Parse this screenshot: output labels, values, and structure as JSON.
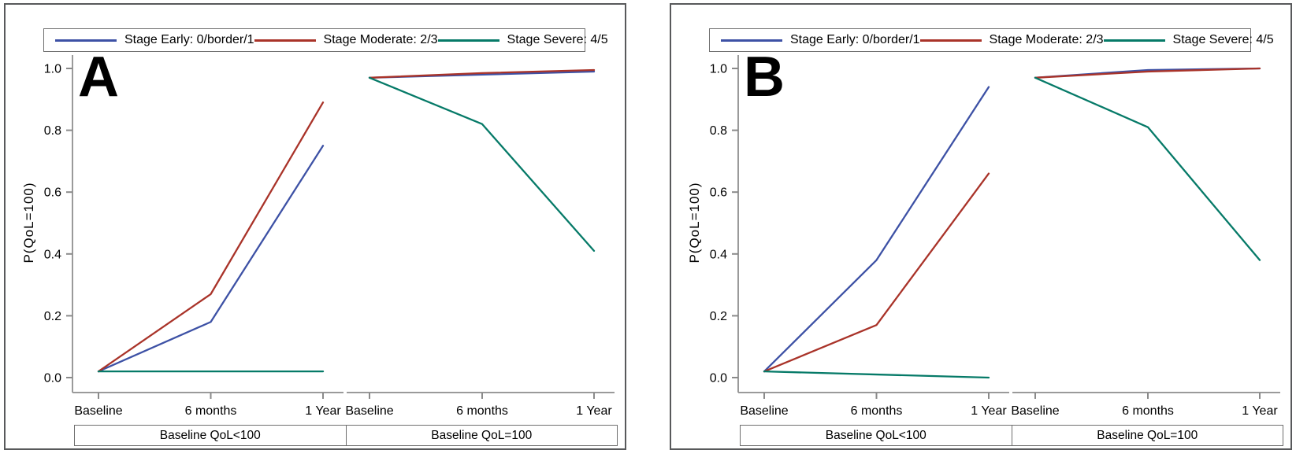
{
  "legend": {
    "entries": [
      {
        "label": "Stage Early: 0/border/1",
        "color": "#3d51a5"
      },
      {
        "label": "Stage Moderate: 2/3",
        "color": "#a93329"
      },
      {
        "label": "Stage Severe: 4/5",
        "color": "#067a68"
      }
    ]
  },
  "axes": {
    "ylabel": "P(QoL=100)",
    "ylim": [
      0,
      1
    ],
    "yticks": [
      1.0,
      0.8,
      0.6,
      0.4,
      0.2,
      0.0
    ],
    "ytick_labels": [
      "1.0",
      "0.8",
      "0.6",
      "0.4",
      "0.2",
      "0.0"
    ],
    "x_categories": [
      "Baseline",
      "6 months",
      "1 Year"
    ],
    "facet_labels": [
      "Baseline QoL<100",
      "Baseline QoL=100"
    ]
  },
  "chart_data": [
    {
      "type": "line",
      "panel": "A",
      "ylabel": "P(QoL=100)",
      "ylim": [
        0,
        1
      ],
      "grid": false,
      "legend_position": "top",
      "x": [
        "Baseline",
        "6 months",
        "1 Year"
      ],
      "facets": [
        {
          "label": "Baseline QoL<100",
          "series": [
            {
              "name": "Stage Early: 0/border/1",
              "color": "#3d51a5",
              "values": [
                0.02,
                0.18,
                0.75
              ]
            },
            {
              "name": "Stage Moderate: 2/3",
              "color": "#a93329",
              "values": [
                0.02,
                0.27,
                0.89
              ]
            },
            {
              "name": "Stage Severe: 4/5",
              "color": "#067a68",
              "values": [
                0.02,
                0.02,
                0.02
              ]
            }
          ]
        },
        {
          "label": "Baseline QoL=100",
          "series": [
            {
              "name": "Stage Early: 0/border/1",
              "color": "#3d51a5",
              "values": [
                0.97,
                0.98,
                0.99
              ]
            },
            {
              "name": "Stage Moderate: 2/3",
              "color": "#a93329",
              "values": [
                0.97,
                0.985,
                0.995
              ]
            },
            {
              "name": "Stage Severe: 4/5",
              "color": "#067a68",
              "values": [
                0.97,
                0.82,
                0.41
              ]
            }
          ]
        }
      ]
    },
    {
      "type": "line",
      "panel": "B",
      "ylabel": "P(QoL=100)",
      "ylim": [
        0,
        1
      ],
      "grid": false,
      "legend_position": "top",
      "x": [
        "Baseline",
        "6 months",
        "1 Year"
      ],
      "facets": [
        {
          "label": "Baseline QoL<100",
          "series": [
            {
              "name": "Stage Early: 0/border/1",
              "color": "#3d51a5",
              "values": [
                0.02,
                0.38,
                0.94
              ]
            },
            {
              "name": "Stage Moderate: 2/3",
              "color": "#a93329",
              "values": [
                0.02,
                0.17,
                0.66
              ]
            },
            {
              "name": "Stage Severe: 4/5",
              "color": "#067a68",
              "values": [
                0.02,
                0.01,
                0.0
              ]
            }
          ]
        },
        {
          "label": "Baseline QoL=100",
          "series": [
            {
              "name": "Stage Early: 0/border/1",
              "color": "#3d51a5",
              "values": [
                0.97,
                0.995,
                1.0
              ]
            },
            {
              "name": "Stage Moderate: 2/3",
              "color": "#a93329",
              "values": [
                0.97,
                0.99,
                1.0
              ]
            },
            {
              "name": "Stage Severe: 4/5",
              "color": "#067a68",
              "values": [
                0.97,
                0.81,
                0.38
              ]
            }
          ]
        }
      ]
    }
  ]
}
